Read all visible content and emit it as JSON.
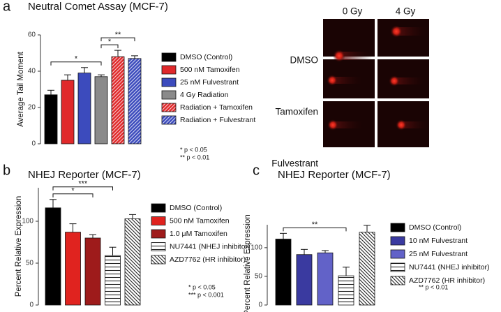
{
  "chart_data": [
    {
      "type": "bar",
      "panel_label": "a",
      "title": "Neutral Comet Assay (MCF-7)",
      "y_label": "Average Tail Moment",
      "categories": [
        "DMSO (Control)",
        "500 nM Tamoxifen",
        "25 nM Fulvestrant",
        "4 Gy Radiation",
        "Radiation + Tamoxifen",
        "Radiation + Fulvestrant"
      ],
      "values": [
        27,
        35,
        39,
        37,
        48,
        47
      ],
      "errors": [
        2.5,
        3,
        3,
        1,
        3.5,
        1.5
      ],
      "colors": [
        "#000000",
        "#e0292b",
        "#3c4bbd",
        "#8a8a8a",
        "#e0292b",
        "#3c4bbd"
      ],
      "hatches": [
        "none",
        "none",
        "none",
        "none",
        "diagonal-up",
        "diagonal-up"
      ],
      "ylim": [
        0,
        60
      ],
      "yticks": [
        0,
        20,
        40,
        60
      ],
      "comparisons": [
        {
          "label": "*",
          "between": [
            0,
            3
          ]
        },
        {
          "label": "*",
          "between": [
            3,
            4
          ]
        },
        {
          "label": "**",
          "between": [
            3,
            5
          ]
        }
      ],
      "notes": [
        "* p < 0.05",
        "** p < 0.01"
      ]
    },
    {
      "type": "bar",
      "panel_label": "b",
      "title": "NHEJ Reporter (MCF-7)",
      "y_label": "Percent Relative Expression",
      "categories": [
        "DMSO (Control)",
        "500 nM Tamoxifen",
        "1.0 μM Tamoxifen",
        "NU7441 (NHEJ inhibitor)",
        "AZD7762 (HR inhibitor)"
      ],
      "values": [
        116,
        87,
        80,
        59,
        103
      ],
      "errors": [
        10,
        10,
        4,
        10,
        5
      ],
      "colors": [
        "#000000",
        "#e0231f",
        "#9e1b1b",
        "#ffffff",
        "#ffffff"
      ],
      "hatches": [
        "none",
        "none",
        "none",
        "horizontal",
        "diagonal-down"
      ],
      "ylim": [
        0,
        140
      ],
      "yticks": [
        0,
        50,
        100
      ],
      "comparisons": [
        {
          "label": "*",
          "between": [
            0,
            2
          ]
        },
        {
          "label": "***",
          "between": [
            0,
            3
          ]
        }
      ],
      "notes": [
        "* p < 0.05",
        "*** p < 0.001"
      ]
    },
    {
      "type": "bar",
      "panel_label": "c",
      "title": "NHEJ Reporter (MCF-7)",
      "y_label": "Percent Relative Expression",
      "categories": [
        "DMSO (Control)",
        "10 nM Fulvestrant",
        "25 nM Fulvestrant",
        "NU7441 (NHEJ inhibitor)",
        "AZD7762 (HR inhibitor)"
      ],
      "values": [
        115,
        88,
        91,
        51,
        127
      ],
      "errors": [
        10,
        9,
        4,
        15,
        12
      ],
      "colors": [
        "#000000",
        "#3a3aa0",
        "#6262c8",
        "#ffffff",
        "#ffffff"
      ],
      "hatches": [
        "none",
        "none",
        "none",
        "horizontal",
        "diagonal-down"
      ],
      "ylim": [
        0,
        140
      ],
      "yticks": [
        0,
        50,
        100
      ],
      "comparisons": [
        {
          "label": "**",
          "between": [
            0,
            3
          ]
        }
      ],
      "notes": [
        "** p < 0.01"
      ]
    }
  ],
  "image_panel": {
    "columns": [
      "0 Gy",
      "4 Gy"
    ],
    "rows": [
      "DMSO",
      "Tamoxifen",
      "Fulvestrant"
    ]
  }
}
